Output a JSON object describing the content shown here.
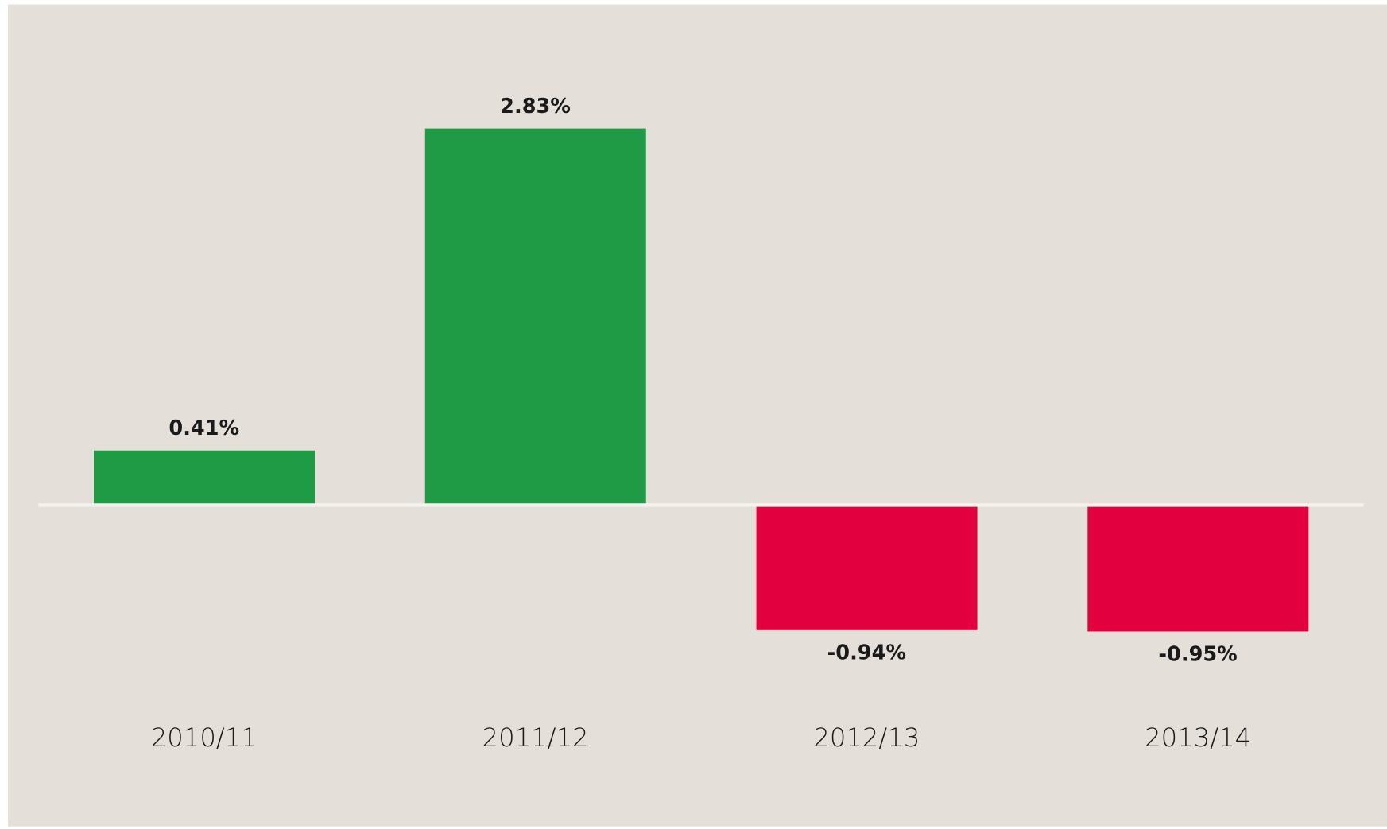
{
  "chart_data": {
    "type": "bar",
    "categories": [
      "2010/11",
      "2011/12",
      "2012/13",
      "2013/14"
    ],
    "values": [
      0.41,
      2.83,
      -0.94,
      -0.95
    ],
    "value_labels": [
      "0.41%",
      "2.83%",
      "-0.94%",
      "-0.95%"
    ],
    "colors": [
      "#1e9b44",
      "#1e9b44",
      "#e2003e",
      "#e2003e"
    ],
    "ylim": [
      -1.5,
      3
    ]
  }
}
